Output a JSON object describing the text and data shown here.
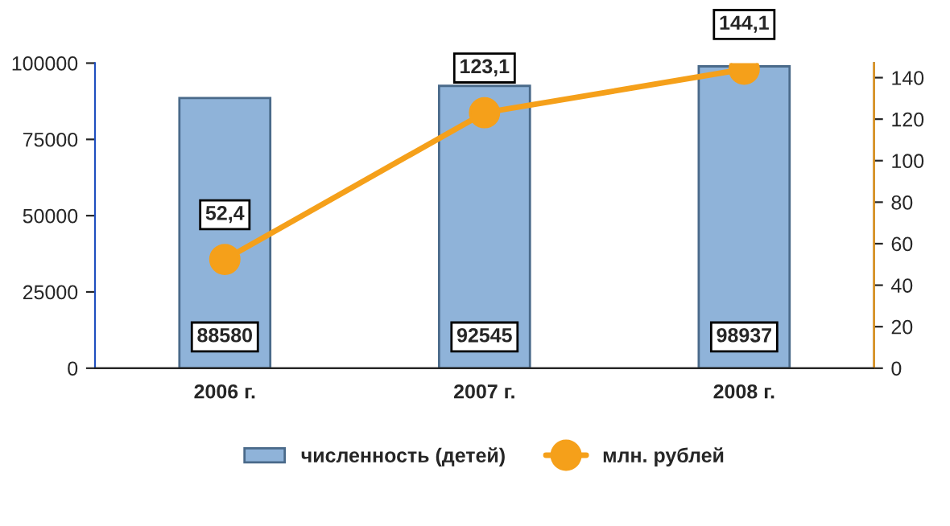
{
  "chart_data": {
    "type": "bar",
    "categories": [
      "2006 г.",
      "2007 г.",
      "2008 г."
    ],
    "series": [
      {
        "name": "численность (детей)",
        "color": "#8fb3d9",
        "values": [
          88580,
          92545,
          98937
        ],
        "value_labels": [
          "88580",
          "92545",
          "98937"
        ]
      },
      {
        "name": "млн. рублей",
        "type": "line",
        "axis": "y2",
        "color": "#f5a01a",
        "values": [
          52.4,
          123.1,
          144.1
        ],
        "value_labels": [
          "52,4",
          "123,1",
          "144,1"
        ],
        "marker": "circle"
      }
    ],
    "ylim": [
      0,
      100000
    ],
    "yticks": [
      0,
      25000,
      50000,
      75000,
      100000
    ],
    "y2lim": [
      0,
      147
    ],
    "y2ticks": [
      0,
      20,
      40,
      60,
      80,
      100,
      120,
      140
    ],
    "grid": false,
    "legend": "bottom"
  }
}
